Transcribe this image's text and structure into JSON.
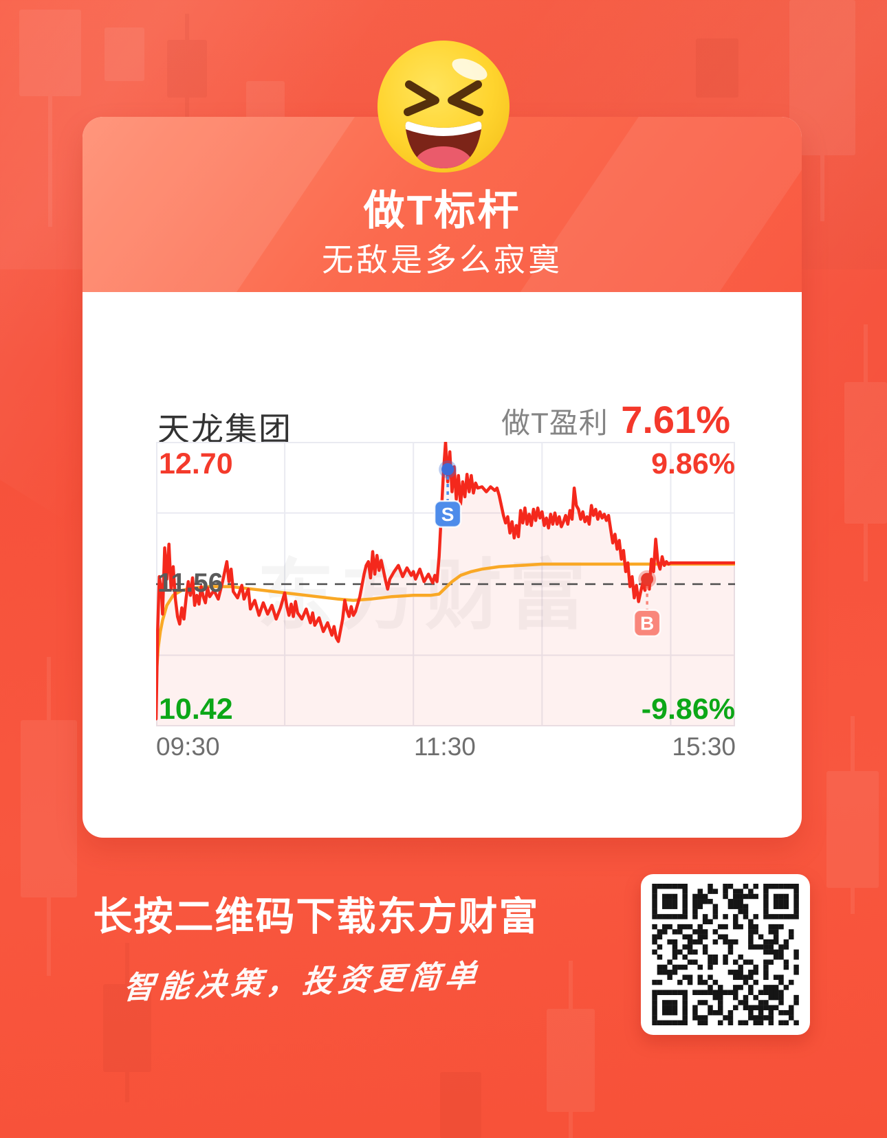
{
  "header": {
    "title": "做T标杆",
    "subtitle": "无敌是多么寂寞"
  },
  "stock": {
    "name": "天龙集团",
    "profit_label": "做T盈利",
    "profit_value": "7.61%"
  },
  "footer": {
    "download_text": "长按二维码下载东方财富",
    "slogan": "智能决策，投资更简单"
  },
  "colors": {
    "background": "#f8573f",
    "card_header": "#fb6a4e",
    "price_line": "#f4281c",
    "avg_line": "#f9a825",
    "up_text": "#f43a2b",
    "down_text": "#0ca717",
    "grid": "#e9eaf1",
    "fill": "rgba(244,40,28,0.065)",
    "sell_badge": "#4e8cea",
    "sell_dot": "#3d6cd8",
    "buy_badge": "#f9867b",
    "buy_dot": "#e8382c",
    "prev_close_dash": "#4d4d4d",
    "qr_module": "#151515"
  },
  "chart_data": {
    "type": "line",
    "title": "天龙集团 分时走势 (minute chart)",
    "watermark": "东方财富",
    "x_axis": {
      "labels": [
        "09:30",
        "11:30",
        "15:30"
      ],
      "total_minutes": 270,
      "gridline_minutes": [
        60,
        120,
        180,
        240
      ],
      "note": "0=09:30 open, 120=11:30/13:00, 240=15:00, 240-270 after-hours session ending 15:30"
    },
    "y_axis": {
      "high_label": "12.70",
      "high_pct_label": "9.86%",
      "prev_close_label": "11.56",
      "low_label": "10.42",
      "low_pct_label": "-9.86%",
      "high": 12.7,
      "prev_close": 11.56,
      "low": 10.42,
      "grid_rows": 4
    },
    "markers": [
      {
        "label": "S",
        "minute": 136,
        "price": 12.48,
        "kind": "sell"
      },
      {
        "label": "B",
        "minute": 229,
        "price": 11.6,
        "kind": "buy"
      }
    ],
    "series": [
      {
        "name": "price",
        "points": [
          [
            0,
            10.48
          ],
          [
            0.7,
            11.18
          ],
          [
            1.5,
            11.62
          ],
          [
            2.5,
            11.5
          ],
          [
            3,
            11.32
          ],
          [
            4,
            11.85
          ],
          [
            5,
            11.6
          ],
          [
            6,
            11.88
          ],
          [
            7,
            11.52
          ],
          [
            8,
            11.7
          ],
          [
            9,
            11.44
          ],
          [
            10,
            11.3
          ],
          [
            11,
            11.24
          ],
          [
            12,
            11.37
          ],
          [
            13,
            11.28
          ],
          [
            14,
            11.45
          ],
          [
            15,
            11.58
          ],
          [
            16,
            11.47
          ],
          [
            17,
            11.61
          ],
          [
            18,
            11.39
          ],
          [
            19,
            11.47
          ],
          [
            20,
            11.4
          ],
          [
            21,
            11.54
          ],
          [
            22,
            11.46
          ],
          [
            23,
            11.41
          ],
          [
            24,
            11.53
          ],
          [
            25,
            11.46
          ],
          [
            27,
            11.51
          ],
          [
            29,
            11.44
          ],
          [
            31,
            11.58
          ],
          [
            33,
            11.74
          ],
          [
            34,
            11.58
          ],
          [
            35,
            11.68
          ],
          [
            36,
            11.5
          ],
          [
            38,
            11.45
          ],
          [
            40,
            11.55
          ],
          [
            41,
            11.44
          ],
          [
            43,
            11.52
          ],
          [
            44,
            11.36
          ],
          [
            46,
            11.43
          ],
          [
            48,
            11.31
          ],
          [
            50,
            11.41
          ],
          [
            52,
            11.32
          ],
          [
            54,
            11.39
          ],
          [
            56,
            11.28
          ],
          [
            58,
            11.37
          ],
          [
            60,
            11.49
          ],
          [
            61,
            11.38
          ],
          [
            62,
            11.31
          ],
          [
            63,
            11.4
          ],
          [
            64,
            11.3
          ],
          [
            65,
            11.42
          ],
          [
            66,
            11.33
          ],
          [
            68,
            11.28
          ],
          [
            70,
            11.36
          ],
          [
            72,
            11.25
          ],
          [
            73,
            11.33
          ],
          [
            74,
            11.23
          ],
          [
            76,
            11.29
          ],
          [
            78,
            11.18
          ],
          [
            80,
            11.25
          ],
          [
            82,
            11.15
          ],
          [
            83,
            11.22
          ],
          [
            84,
            11.13
          ],
          [
            85,
            11.1
          ],
          [
            86,
            11.19
          ],
          [
            87,
            11.28
          ],
          [
            88,
            11.43
          ],
          [
            89,
            11.35
          ],
          [
            90,
            11.3
          ],
          [
            91,
            11.38
          ],
          [
            92,
            11.31
          ],
          [
            93,
            11.34
          ],
          [
            95,
            11.46
          ],
          [
            97,
            11.64
          ],
          [
            98,
            11.71
          ],
          [
            99,
            11.74
          ],
          [
            100,
            11.61
          ],
          [
            101,
            11.82
          ],
          [
            102,
            11.64
          ],
          [
            103,
            11.79
          ],
          [
            104,
            11.67
          ],
          [
            105,
            11.75
          ],
          [
            106,
            11.67
          ],
          [
            107,
            11.59
          ],
          [
            108,
            11.52
          ],
          [
            109,
            11.6
          ],
          [
            111,
            11.66
          ],
          [
            113,
            11.71
          ],
          [
            115,
            11.62
          ],
          [
            117,
            11.69
          ],
          [
            119,
            11.63
          ],
          [
            120,
            11.66
          ],
          [
            121,
            11.6
          ],
          [
            123,
            11.68
          ],
          [
            125,
            11.58
          ],
          [
            127,
            11.64
          ],
          [
            129,
            11.57
          ],
          [
            130,
            11.63
          ],
          [
            131,
            11.58
          ],
          [
            132,
            11.78
          ],
          [
            133,
            12.12
          ],
          [
            134,
            12.45
          ],
          [
            135,
            12.7
          ],
          [
            136,
            12.38
          ],
          [
            137,
            12.62
          ],
          [
            138,
            12.3
          ],
          [
            139,
            12.5
          ],
          [
            140,
            12.24
          ],
          [
            141,
            12.43
          ],
          [
            142,
            12.2
          ],
          [
            143,
            12.38
          ],
          [
            144,
            12.26
          ],
          [
            145,
            12.44
          ],
          [
            146,
            12.3
          ],
          [
            147,
            12.43
          ],
          [
            148,
            12.29
          ],
          [
            149,
            12.37
          ],
          [
            150,
            12.33
          ],
          [
            152,
            12.34
          ],
          [
            154,
            12.3
          ],
          [
            156,
            12.34
          ],
          [
            158,
            12.31
          ],
          [
            159,
            12.33
          ],
          [
            160,
            12.27
          ],
          [
            161,
            12.19
          ],
          [
            162,
            12.11
          ],
          [
            163,
            12.05
          ],
          [
            164,
            12.1
          ],
          [
            165,
            11.97
          ],
          [
            166,
            12.06
          ],
          [
            167,
            11.93
          ],
          [
            168,
            12.03
          ],
          [
            169,
            11.94
          ],
          [
            170,
            12.15
          ],
          [
            171,
            12.05
          ],
          [
            172,
            12.17
          ],
          [
            173,
            12.04
          ],
          [
            174,
            12.12
          ],
          [
            175,
            12.03
          ],
          [
            176,
            12.16
          ],
          [
            177,
            12.07
          ],
          [
            178,
            12.17
          ],
          [
            179,
            12.09
          ],
          [
            180,
            12.14
          ],
          [
            181,
            12.03
          ],
          [
            182,
            12.09
          ],
          [
            183,
            12.01
          ],
          [
            184,
            12.12
          ],
          [
            185,
            12.04
          ],
          [
            186,
            12.13
          ],
          [
            187,
            12.04
          ],
          [
            188,
            12.1
          ],
          [
            189,
            12.02
          ],
          [
            190,
            12.06
          ],
          [
            191,
            12.11
          ],
          [
            192,
            12.04
          ],
          [
            193,
            12.15
          ],
          [
            194,
            12.08
          ],
          [
            195,
            12.33
          ],
          [
            196,
            12.19
          ],
          [
            197,
            12.16
          ],
          [
            198,
            12.08
          ],
          [
            199,
            12.14
          ],
          [
            200,
            12.06
          ],
          [
            201,
            12.1
          ],
          [
            202,
            12.04
          ],
          [
            203,
            12.19
          ],
          [
            204,
            12.11
          ],
          [
            205,
            12.16
          ],
          [
            206,
            12.08
          ],
          [
            207,
            12.14
          ],
          [
            208,
            12.09
          ],
          [
            209,
            12.12
          ],
          [
            210,
            12.07
          ],
          [
            211,
            12.11
          ],
          [
            212,
            12.0
          ],
          [
            213,
            11.89
          ],
          [
            214,
            11.96
          ],
          [
            215,
            11.84
          ],
          [
            216,
            11.91
          ],
          [
            217,
            11.76
          ],
          [
            218,
            11.83
          ],
          [
            219,
            11.66
          ],
          [
            220,
            11.73
          ],
          [
            221,
            11.54
          ],
          [
            222,
            11.62
          ],
          [
            223,
            11.45
          ],
          [
            224,
            11.55
          ],
          [
            225,
            11.42
          ],
          [
            226,
            11.5
          ],
          [
            227,
            11.57
          ],
          [
            228,
            11.51
          ],
          [
            229,
            11.6
          ],
          [
            230,
            11.52
          ],
          [
            231,
            11.76
          ],
          [
            232,
            11.66
          ],
          [
            233,
            11.92
          ],
          [
            234,
            11.74
          ],
          [
            235,
            11.68
          ],
          [
            236,
            11.78
          ],
          [
            237,
            11.71
          ],
          [
            238,
            11.74
          ],
          [
            239,
            11.72
          ],
          [
            240,
            11.73
          ],
          [
            270,
            11.73
          ]
        ]
      },
      {
        "name": "avg_price",
        "points": [
          [
            0,
            10.8
          ],
          [
            1,
            11.05
          ],
          [
            2,
            11.18
          ],
          [
            3,
            11.27
          ],
          [
            5,
            11.39
          ],
          [
            8,
            11.47
          ],
          [
            12,
            11.51
          ],
          [
            18,
            11.53
          ],
          [
            25,
            11.54
          ],
          [
            35,
            11.54
          ],
          [
            45,
            11.52
          ],
          [
            55,
            11.5
          ],
          [
            65,
            11.48
          ],
          [
            75,
            11.46
          ],
          [
            85,
            11.44
          ],
          [
            92,
            11.43
          ],
          [
            100,
            11.44
          ],
          [
            110,
            11.46
          ],
          [
            120,
            11.47
          ],
          [
            128,
            11.47
          ],
          [
            132,
            11.48
          ],
          [
            135,
            11.53
          ],
          [
            138,
            11.58
          ],
          [
            142,
            11.63
          ],
          [
            147,
            11.66
          ],
          [
            152,
            11.68
          ],
          [
            160,
            11.7
          ],
          [
            170,
            11.71
          ],
          [
            180,
            11.72
          ],
          [
            195,
            11.72
          ],
          [
            210,
            11.72
          ],
          [
            225,
            11.72
          ],
          [
            240,
            11.72
          ],
          [
            270,
            11.72
          ]
        ]
      }
    ]
  }
}
